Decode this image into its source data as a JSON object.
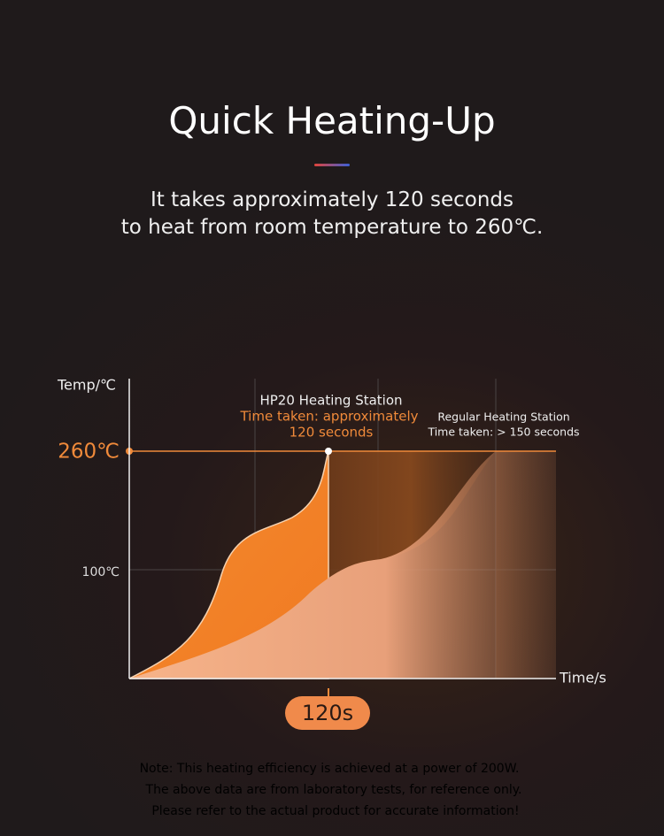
{
  "header": {
    "title": "Quick Heating-Up",
    "subtitle": [
      "It takes approximately 120 seconds",
      "to heat from room temperature to 260℃."
    ]
  },
  "chart": {
    "y_axis_label": "Temp/℃",
    "x_axis_label": "Time/s",
    "y_labels": [
      "260℃",
      "100℃"
    ],
    "hp20": {
      "name": "HP20 Heating Station",
      "caption": [
        "Time taken: approximately",
        "120 seconds"
      ]
    },
    "regular": {
      "name": "Regular Heating Station",
      "caption": "Time taken: > 150 seconds"
    },
    "marker": "120s"
  },
  "notes": [
    "Note: This heating efficiency is achieved at a power of 200W.",
    "The above data are from laboratory tests, for reference only.",
    "Please refer to the actual product for accurate information!"
  ]
}
